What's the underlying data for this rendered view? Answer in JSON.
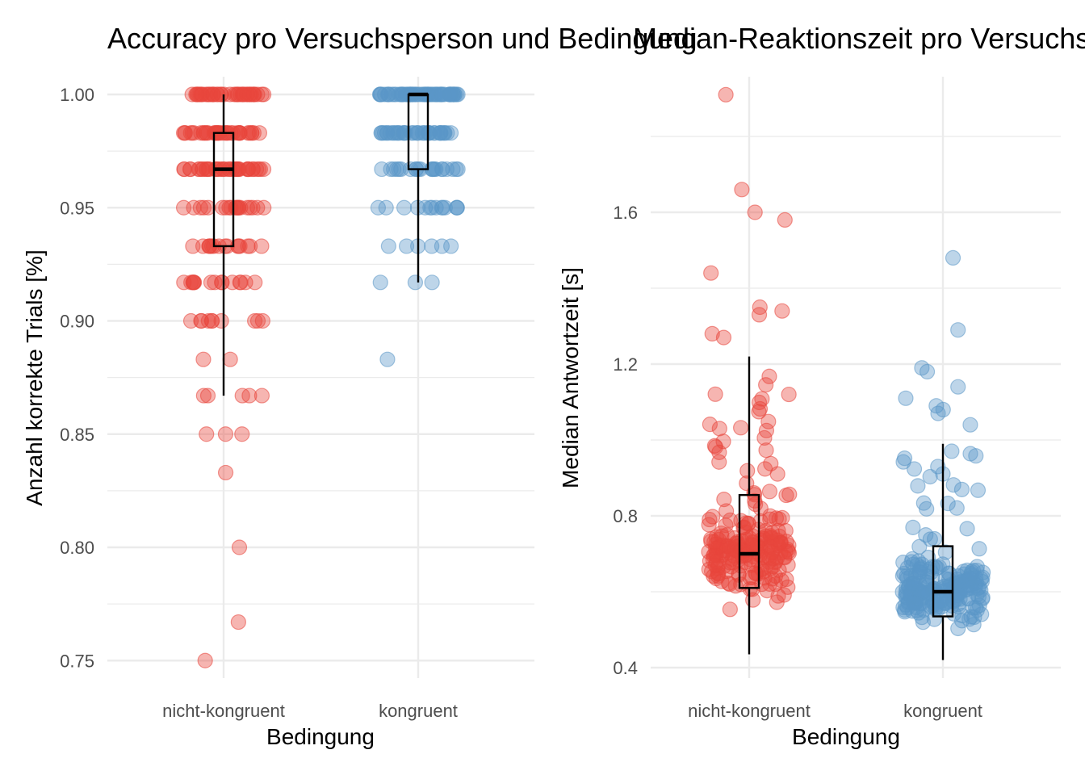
{
  "chart_data": [
    {
      "type": "scatter",
      "subtype": "jitter-with-boxplot",
      "title": "Accuracy pro Versuchsperson und Bedingung",
      "xlabel": "Bedingung",
      "ylabel": "Anzahl korrekte Trials [%]",
      "categories": [
        "nicht-kongruent",
        "kongruent"
      ],
      "ylim": [
        0.74,
        1.02
      ],
      "yticks": [
        "0.75",
        "0.80",
        "0.85",
        "0.90",
        "0.95",
        "1.00"
      ],
      "grid": true,
      "legend": "none",
      "colors": [
        "#e8453c",
        "#5b97c7"
      ],
      "series": [
        {
          "category": "nicht-kongruent",
          "color": "#e8453c",
          "levels": [
            {
              "y": 1.0,
              "count": 40
            },
            {
              "y": 0.983,
              "count": 38
            },
            {
              "y": 0.967,
              "count": 38
            },
            {
              "y": 0.95,
              "count": 20
            },
            {
              "y": 0.933,
              "count": 16
            },
            {
              "y": 0.917,
              "count": 15
            },
            {
              "y": 0.9,
              "count": 10
            },
            {
              "y": 0.883,
              "count": 2
            },
            {
              "y": 0.867,
              "count": 5
            },
            {
              "y": 0.85,
              "count": 3
            },
            {
              "y": 0.833,
              "count": 1
            },
            {
              "y": 0.8,
              "count": 1
            },
            {
              "y": 0.767,
              "count": 1
            },
            {
              "y": 0.75,
              "count": 1
            }
          ],
          "box": {
            "lower_whisker": 0.867,
            "q1": 0.933,
            "median": 0.967,
            "q3": 0.983,
            "upper_whisker": 1.0
          }
        },
        {
          "category": "kongruent",
          "color": "#5b97c7",
          "levels": [
            {
              "y": 1.0,
              "count": 60
            },
            {
              "y": 0.983,
              "count": 40
            },
            {
              "y": 0.967,
              "count": 22
            },
            {
              "y": 0.95,
              "count": 14
            },
            {
              "y": 0.933,
              "count": 6
            },
            {
              "y": 0.917,
              "count": 3
            },
            {
              "y": 0.883,
              "count": 1
            }
          ],
          "box": {
            "lower_whisker": 0.917,
            "q1": 0.967,
            "median": 1.0,
            "q3": 1.0,
            "upper_whisker": 1.0
          }
        }
      ]
    },
    {
      "type": "scatter",
      "subtype": "jitter-with-boxplot",
      "title": "Median-Reaktionszeit pro Versuchsperson und Bedingung",
      "xlabel": "Bedingung",
      "ylabel": "Median Antwortzeit [s]",
      "categories": [
        "nicht-kongruent",
        "kongruent"
      ],
      "ylim": [
        0.39,
        1.93
      ],
      "yticks": [
        "0.4",
        "0.8",
        "1.2",
        "1.6"
      ],
      "grid": true,
      "legend": "none",
      "colors": [
        "#e8453c",
        "#5b97c7"
      ],
      "series": [
        {
          "category": "nicht-kongruent",
          "color": "#e8453c",
          "n": 230,
          "box": {
            "lower_whisker": 0.435,
            "q1": 0.61,
            "median": 0.7,
            "q3": 0.855,
            "upper_whisker": 1.22
          },
          "outliers": [
            1.91,
            1.66,
            1.6,
            1.58,
            1.44,
            1.35,
            1.34,
            1.33,
            1.28,
            1.27
          ],
          "n_body_points": 220,
          "body_range": [
            0.43,
            1.2
          ]
        },
        {
          "category": "kongruent",
          "color": "#5b97c7",
          "n": 230,
          "box": {
            "lower_whisker": 0.42,
            "q1": 0.535,
            "median": 0.6,
            "q3": 0.72,
            "upper_whisker": 0.99
          },
          "outliers": [
            1.48,
            1.29,
            1.19,
            1.18,
            1.14,
            1.11,
            1.09,
            1.08,
            1.07,
            1.04
          ],
          "n_body_points": 220,
          "body_range": [
            0.42,
            0.98
          ]
        }
      ]
    }
  ]
}
